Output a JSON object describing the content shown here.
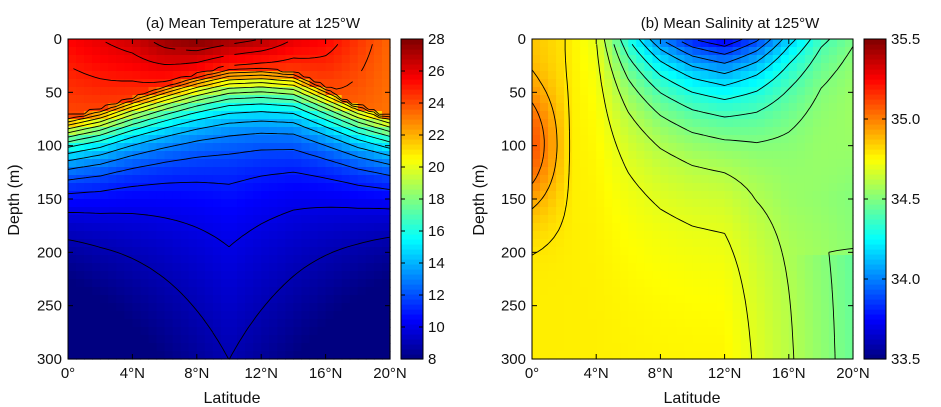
{
  "chart_data": [
    {
      "type": "heatmap",
      "title": "(a) Mean Temperature at 125°W",
      "xlabel": "Latitude",
      "ylabel": "Depth (m)",
      "x": [
        0,
        2,
        4,
        6,
        8,
        10,
        12,
        14,
        16,
        18,
        20
      ],
      "xlim": [
        0,
        20
      ],
      "ylim": [
        0,
        300
      ],
      "y_reversed": true,
      "x_ticks": [
        0,
        4,
        8,
        12,
        16,
        20
      ],
      "x_tick_labels": [
        "0°",
        "4°N",
        "8°N",
        "12°N",
        "16°N",
        "20°N"
      ],
      "y_ticks": [
        0,
        50,
        100,
        150,
        200,
        250,
        300
      ],
      "y_tick_labels": [
        "0",
        "50",
        "100",
        "150",
        "200",
        "250",
        "300"
      ],
      "colorbar": {
        "min": 8,
        "max": 28,
        "ticks": [
          8,
          10,
          12,
          14,
          16,
          18,
          20,
          22,
          24,
          26,
          28
        ],
        "tick_labels": [
          "8",
          "10",
          "12",
          "14",
          "16",
          "18",
          "20",
          "22",
          "24",
          "26",
          "28"
        ]
      },
      "profiles": {
        "depths": [
          0,
          15,
          30,
          45,
          60,
          75,
          90,
          110,
          130,
          145,
          165,
          190,
          220,
          260,
          300
        ],
        "thermocline_depth": [
          100,
          92,
          80,
          68,
          58,
          52,
          52,
          57,
          72,
          88,
          100
        ],
        "surface_temperature": [
          25.5,
          26.0,
          26.5,
          27.5,
          28.0,
          27.5,
          27.0,
          26.0,
          25.5,
          24.5,
          23.5
        ]
      }
    },
    {
      "type": "heatmap",
      "title": "(b) Mean Salinity at 125°W",
      "xlabel": "Latitude",
      "ylabel": "Depth (m)",
      "x": [
        0,
        2,
        4,
        6,
        8,
        10,
        12,
        14,
        16,
        18,
        20
      ],
      "xlim": [
        0,
        20
      ],
      "ylim": [
        0,
        300
      ],
      "y_reversed": true,
      "x_ticks": [
        0,
        4,
        8,
        12,
        16,
        20
      ],
      "x_tick_labels": [
        "0°",
        "4°N",
        "8°N",
        "12°N",
        "16°N",
        "20°N"
      ],
      "y_ticks": [
        0,
        50,
        100,
        150,
        200,
        250,
        300
      ],
      "y_tick_labels": [
        "0",
        "50",
        "100",
        "150",
        "200",
        "250",
        "300"
      ],
      "colorbar": {
        "min": 33.5,
        "max": 35.5,
        "ticks": [
          33.5,
          34.0,
          34.5,
          35.0,
          35.5
        ],
        "tick_labels": [
          "33.5",
          "34.0",
          "34.5",
          "35.0",
          "35.5"
        ]
      },
      "profiles": {
        "surface_salinity": [
          34.85,
          34.8,
          34.7,
          34.3,
          34.0,
          33.8,
          33.7,
          33.9,
          34.2,
          34.4,
          34.5
        ],
        "max_salinity_at_equator_depth": 100,
        "max_salinity_value": 35.05
      }
    }
  ]
}
